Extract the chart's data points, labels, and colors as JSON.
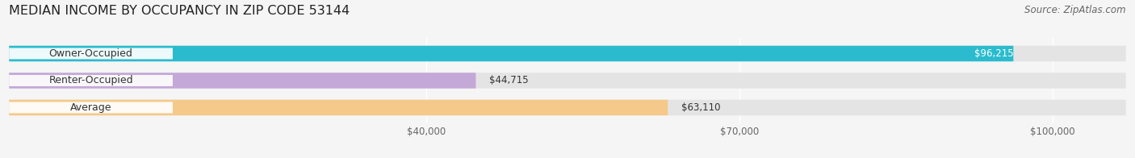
{
  "title": "MEDIAN INCOME BY OCCUPANCY IN ZIP CODE 53144",
  "source": "Source: ZipAtlas.com",
  "categories": [
    "Owner-Occupied",
    "Renter-Occupied",
    "Average"
  ],
  "values": [
    96215,
    44715,
    63110
  ],
  "labels": [
    "$96,215",
    "$44,715",
    "$63,110"
  ],
  "bar_colors": [
    "#2abcce",
    "#c4a8d8",
    "#f5c98a"
  ],
  "background_color": "#f5f5f5",
  "bar_bg_color": "#e4e4e4",
  "label_bg_color": "#ffffff",
  "xlim_max": 107000,
  "xticks": [
    40000,
    70000,
    100000
  ],
  "xticklabels": [
    "$40,000",
    "$70,000",
    "$100,000"
  ],
  "title_fontsize": 11.5,
  "source_fontsize": 8.5,
  "value_fontsize": 8.5,
  "category_fontsize": 9,
  "bar_height": 0.58,
  "figsize": [
    14.06,
    1.96
  ],
  "dpi": 100
}
